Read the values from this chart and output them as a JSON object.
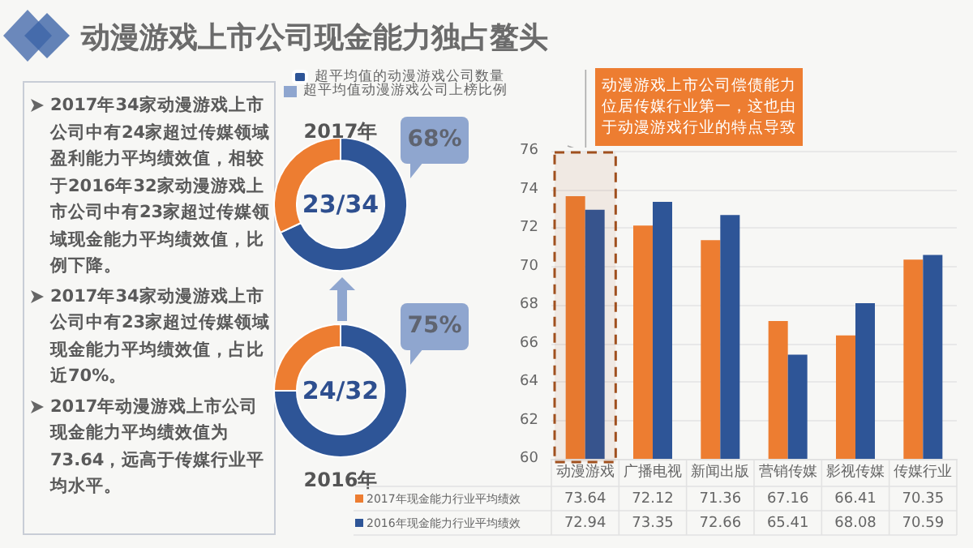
{
  "chart_data": [
    {
      "type": "other",
      "title": "动漫游戏上市公司现金能力独占鳌头",
      "annotations": [
        "2017年34家动漫游戏上市公司中有24家超过传媒领域盈利能力平均绩效值，相较于2016年32家动漫游戏上市公司中有23家超过传媒领域现金能力平均绩效值，比例下降。",
        "2017年34家动漫游戏上市公司中有23家超过传媒领域现金能力平均绩效值，占比近70%。",
        "2017年动漫游戏上市公司现金能力平均绩效值为73.64，远高于传媒行业平均水平。"
      ]
    },
    {
      "type": "donut",
      "title": "2017年",
      "categories": [
        "超平均值的动漫游戏公司数量",
        null
      ],
      "values": [
        68,
        32
      ],
      "colors": [
        "#2e5597",
        "#ed7d31"
      ],
      "legend": "top",
      "annotations": [
        "23/34",
        "超平均值动漫游戏公司上榜比例",
        "68%"
      ]
    },
    {
      "type": "donut",
      "title": "2016年",
      "categories": [
        null,
        null
      ],
      "values": [
        75,
        25
      ],
      "colors": [
        "#2e5597",
        "#ed7d31"
      ],
      "annotations": [
        "24/32",
        "75%"
      ]
    },
    {
      "type": "bar",
      "categories": [
        "动漫游戏",
        "广播电视",
        "新闻出版",
        "营销传媒",
        "影视传媒",
        "传媒行业"
      ],
      "series": [
        {
          "name": "2017年现金能力行业平均绩效",
          "color": "#ed7d31",
          "values": [
            73.64,
            72.12,
            71.36,
            67.16,
            66.41,
            70.35
          ]
        },
        {
          "name": "2016年现金能力行业平均绩效",
          "color": "#2e5597",
          "values": [
            72.94,
            73.35,
            72.66,
            65.41,
            68.08,
            70.59
          ]
        }
      ],
      "ylim": [
        60,
        76
      ],
      "yticks": [
        60,
        62,
        64,
        66,
        68,
        70,
        72,
        74,
        76
      ],
      "grid": "y",
      "legend": "bottom left",
      "data_labels": true,
      "bands": [
        {
          "axis": "x",
          "from": "动漫游戏",
          "to": "动漫游戏",
          "color": "#a0501e"
        }
      ],
      "annotations": [
        "动漫游戏上市公司偿债能力位居传媒行业第一，这也由于动漫游戏行业的特点导致"
      ]
    }
  ]
}
